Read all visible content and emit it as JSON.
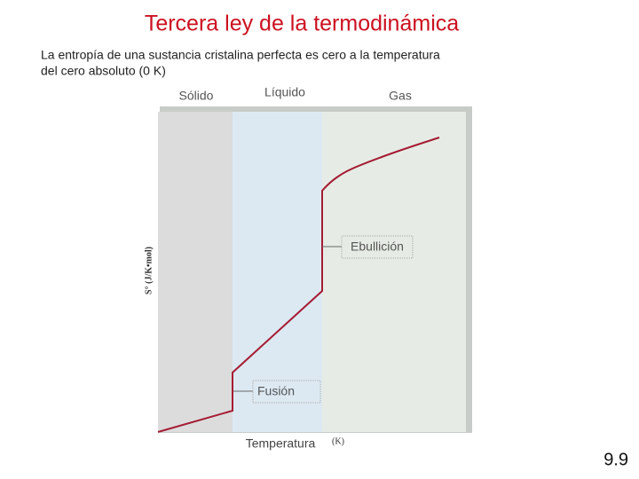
{
  "header": {
    "title": "Tercera ley de la termodinámica"
  },
  "description": {
    "lines": [
      "La entropía de una sustancia cristalina perfecta es cero a la  temperatura",
      "del cero absoluto (0 K)"
    ]
  },
  "diagram": {
    "phases": [
      "Sólido",
      "Líquido",
      "Gas"
    ],
    "y_label": "S° (J/K•mol)",
    "x_label": "Temperatura",
    "x_unit": "(K)",
    "annotations": [
      "Ebullición",
      "Fusión"
    ]
  },
  "footer": {
    "slide_number": "9.9"
  }
}
